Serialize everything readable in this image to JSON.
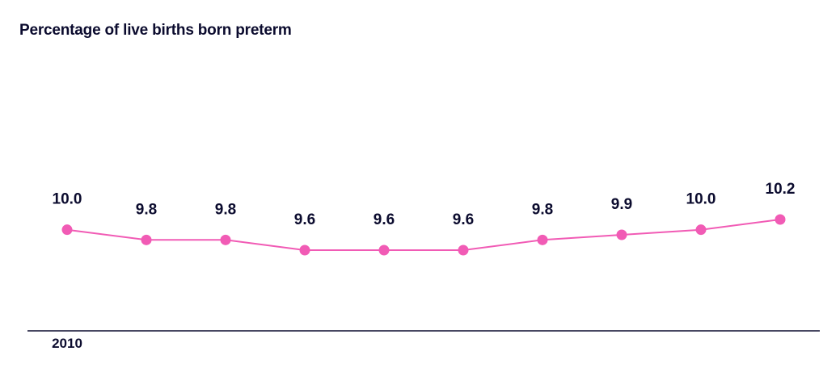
{
  "title": "Percentage of live births born preterm",
  "chart_data": {
    "type": "line",
    "title": "Percentage of live births born preterm",
    "xlabel": "",
    "ylabel": "",
    "x_tick_labels": [
      "2010"
    ],
    "values": [
      10.0,
      9.8,
      9.8,
      9.6,
      9.6,
      9.6,
      9.8,
      9.9,
      10.0,
      10.2
    ],
    "data_labels": [
      "10.0",
      "9.8",
      "9.8",
      "9.6",
      "9.6",
      "9.6",
      "9.8",
      "9.9",
      "10.0",
      "10.2"
    ],
    "grid": false,
    "legend": "none",
    "line_color": "#f15bb5",
    "text_color": "#0b0b2e",
    "axis_color": "#0b0b2e"
  }
}
